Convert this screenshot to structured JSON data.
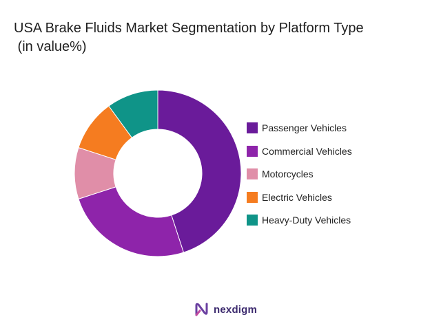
{
  "chart_data": {
    "type": "pie",
    "title": "USA Brake Fluids Market Segmentation by Platform Type",
    "subtitle": " (in value%)",
    "legend_position": "right",
    "donut": true,
    "categories": [
      "Passenger Vehicles",
      "Commercial Vehicles",
      "Motorcycles",
      "Electric Vehicles",
      "Heavy-Duty Vehicles"
    ],
    "values": [
      45,
      25,
      10,
      10,
      10
    ],
    "colors": [
      "#6a1b9a",
      "#8e24aa",
      "#e08ea8",
      "#f57c20",
      "#0f9488"
    ]
  },
  "brand": {
    "name": "nexdigm",
    "logo_icon": "nexdigm-logo-icon",
    "logo_color": "#6a3fa0"
  }
}
